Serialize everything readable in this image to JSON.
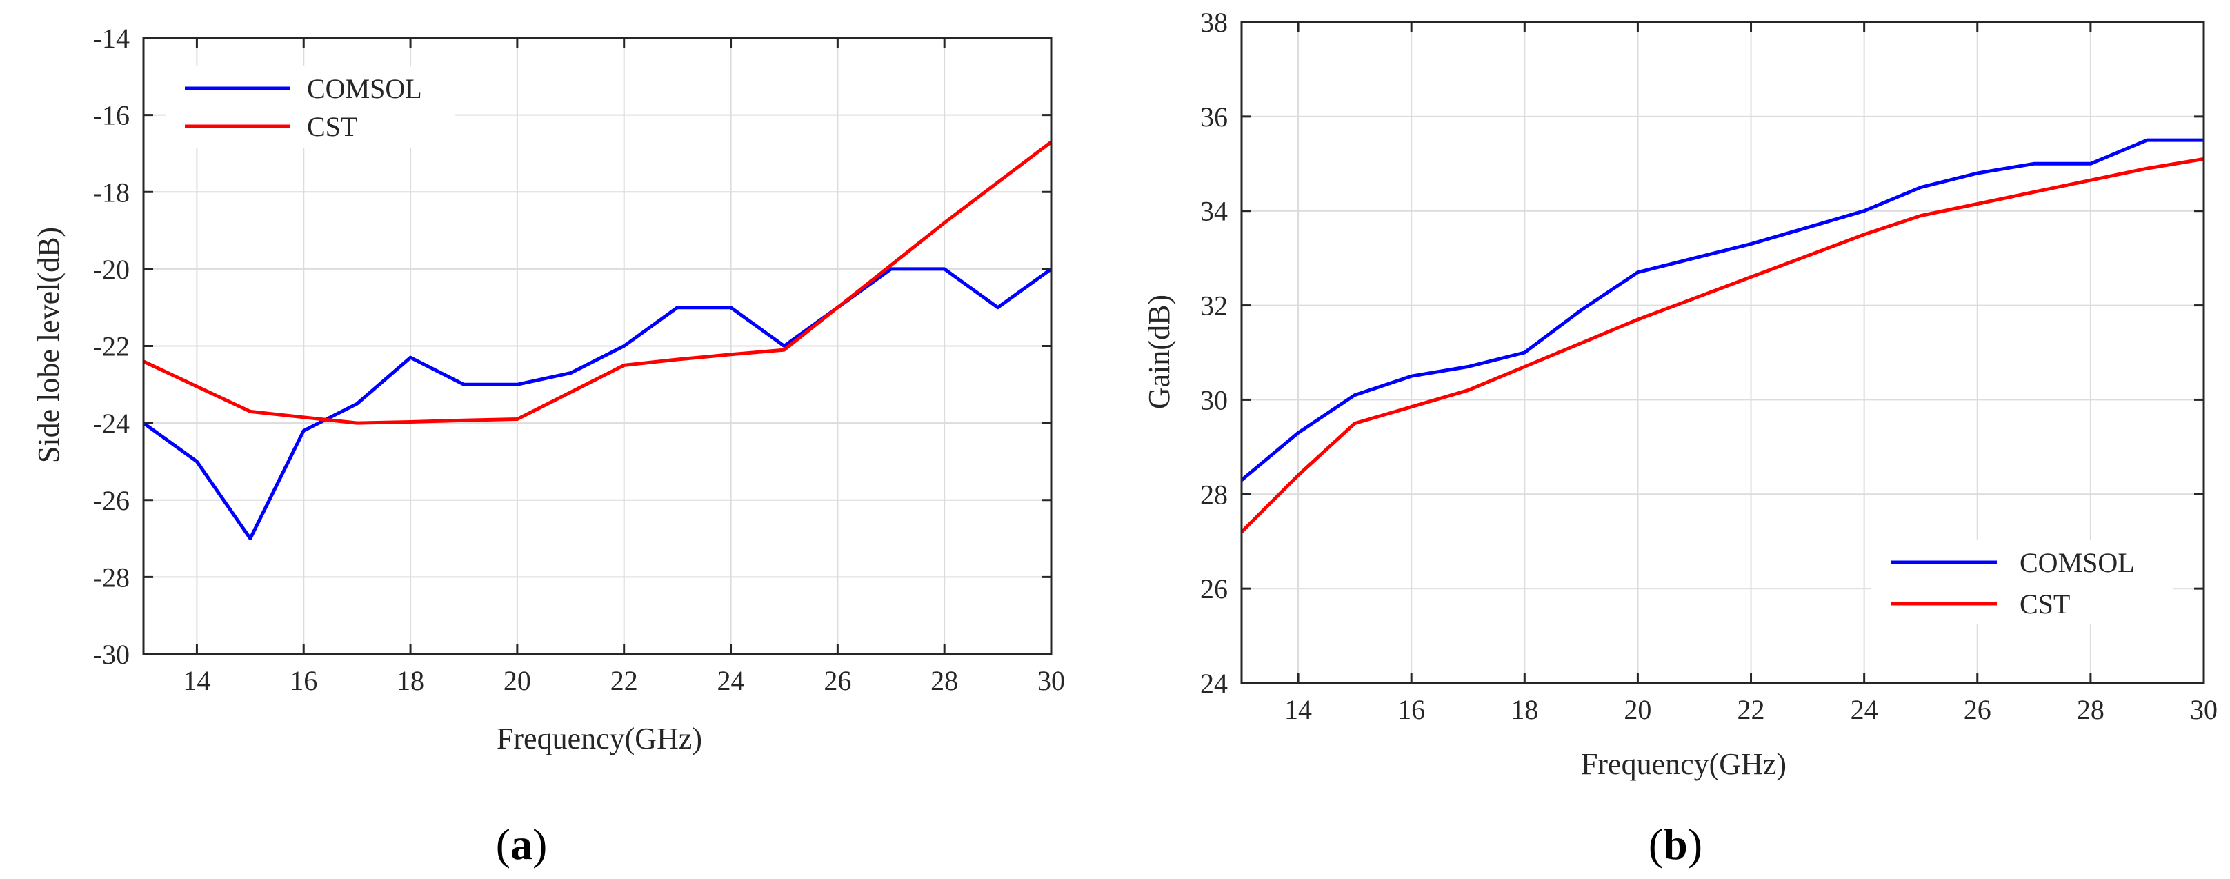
{
  "charts": [
    {
      "subcaption_open": "(",
      "subcaption_letter": "a",
      "subcaption_close": ")",
      "legend_placement": "top-left"
    },
    {
      "subcaption_open": "(",
      "subcaption_letter": "b",
      "subcaption_close": ")",
      "legend_placement": "bottom-right"
    }
  ],
  "chart_data": [
    {
      "type": "line",
      "title": "",
      "xlabel": "Frequency(GHz)",
      "ylabel": "Side lobe level(dB)",
      "xlim": [
        13,
        30
      ],
      "ylim": [
        -30,
        -14
      ],
      "xticks": [
        14,
        16,
        18,
        20,
        22,
        24,
        26,
        28,
        30
      ],
      "yticks": [
        -30,
        -28,
        -26,
        -24,
        -22,
        -20,
        -18,
        -16,
        -14
      ],
      "grid": true,
      "legend": "top-left",
      "series": [
        {
          "name": "COMSOL",
          "color": "#0000ff",
          "x": [
            13,
            14,
            15,
            16,
            17,
            18,
            19,
            20,
            21,
            22,
            23,
            24,
            25,
            26,
            27,
            28,
            29,
            30
          ],
          "y": [
            -24,
            -25,
            -27,
            -24.2,
            -23.5,
            -22.3,
            -23,
            -23,
            -22.7,
            -22,
            -21,
            -21,
            -22,
            -21,
            -20,
            -20,
            -21,
            -20
          ]
        },
        {
          "name": "CST",
          "color": "#ff0000",
          "x": [
            13,
            14,
            15,
            16,
            17,
            18,
            19,
            20,
            21,
            22,
            23,
            24,
            25,
            26,
            27,
            28,
            29,
            30
          ],
          "y": [
            -22.4,
            -23.05,
            -23.7,
            -23.85,
            -24,
            -23.97,
            -23.93,
            -23.9,
            -23.2,
            -22.5,
            -22.35,
            -22.22,
            -22.1,
            -21,
            -19.9,
            -18.8,
            -17.75,
            -16.7
          ]
        }
      ]
    },
    {
      "type": "line",
      "title": "",
      "xlabel": "Frequency(GHz)",
      "ylabel": "Gain(dB)",
      "xlim": [
        13,
        30
      ],
      "ylim": [
        24,
        38
      ],
      "xticks": [
        14,
        16,
        18,
        20,
        22,
        24,
        26,
        28,
        30
      ],
      "yticks": [
        24,
        26,
        28,
        30,
        32,
        34,
        36,
        38
      ],
      "grid": true,
      "legend": "bottom-right",
      "series": [
        {
          "name": "COMSOL",
          "color": "#0000ff",
          "x": [
            13,
            14,
            15,
            16,
            17,
            18,
            19,
            20,
            21,
            22,
            23,
            24,
            25,
            26,
            27,
            28,
            29,
            30
          ],
          "y": [
            28.3,
            29.3,
            30.1,
            30.5,
            30.7,
            31,
            31.9,
            32.7,
            33,
            33.3,
            33.65,
            34,
            34.5,
            34.8,
            35,
            35,
            35.5,
            35.5
          ]
        },
        {
          "name": "CST",
          "color": "#ff0000",
          "x": [
            13,
            14,
            15,
            16,
            17,
            18,
            19,
            20,
            21,
            22,
            23,
            24,
            25,
            26,
            27,
            28,
            29,
            30
          ],
          "y": [
            27.2,
            28.4,
            29.5,
            29.85,
            30.2,
            30.7,
            31.2,
            31.7,
            32.15,
            32.6,
            33.05,
            33.5,
            33.9,
            34.15,
            34.4,
            34.65,
            34.9,
            35.1
          ]
        }
      ]
    }
  ]
}
